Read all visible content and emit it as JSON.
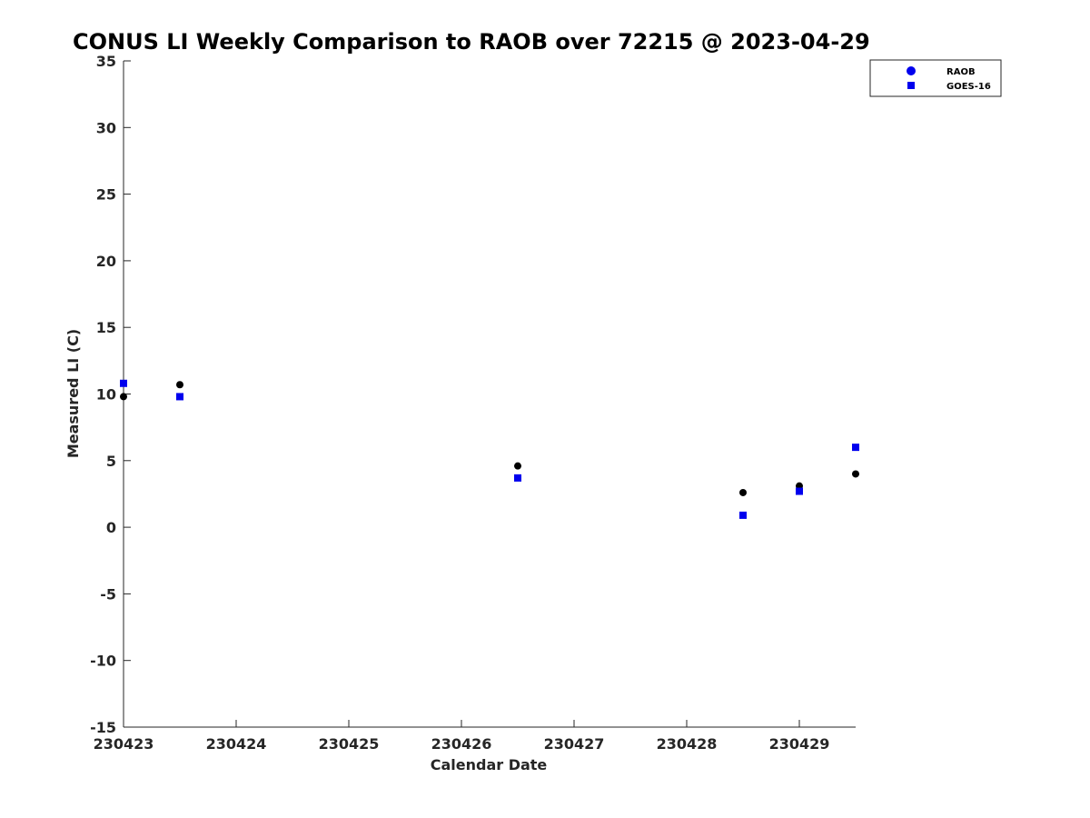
{
  "chart_data": {
    "type": "scatter",
    "title": "CONUS LI Weekly Comparison to RAOB over 72215 @ 2023-04-29",
    "xlabel": "Calendar Date",
    "ylabel": "Measured LI (C)",
    "x_tick_labels": [
      "230423",
      "230424",
      "230425",
      "230426",
      "230427",
      "230428",
      "230429"
    ],
    "x_ticks": [
      "2023-04-23",
      "2023-04-24",
      "2023-04-25",
      "2023-04-26",
      "2023-04-27",
      "2023-04-28",
      "2023-04-29"
    ],
    "xlim": [
      "2023-04-23T00:00",
      "2023-04-29T12:00"
    ],
    "ylim": [
      -15,
      35
    ],
    "y_ticks": [
      -15,
      -10,
      -5,
      0,
      5,
      10,
      15,
      20,
      25,
      30,
      35
    ],
    "grid": false,
    "legend_position": "top-right",
    "series": [
      {
        "name": "RAOB",
        "marker": "circle",
        "color": "#000000",
        "legend_color": "#0000ee",
        "points": [
          {
            "x": "2023-04-23T00:00",
            "y": 9.8
          },
          {
            "x": "2023-04-23T12:00",
            "y": 10.7
          },
          {
            "x": "2023-04-26T12:00",
            "y": 4.6
          },
          {
            "x": "2023-04-28T12:00",
            "y": 2.6
          },
          {
            "x": "2023-04-29T00:00",
            "y": 3.1
          },
          {
            "x": "2023-04-29T12:00",
            "y": 4.0
          }
        ]
      },
      {
        "name": "GOES-16",
        "marker": "square",
        "color": "#0000ee",
        "legend_color": "#0000ee",
        "points": [
          {
            "x": "2023-04-23T00:00",
            "y": 10.8
          },
          {
            "x": "2023-04-23T12:00",
            "y": 9.8
          },
          {
            "x": "2023-04-26T12:00",
            "y": 3.7
          },
          {
            "x": "2023-04-28T12:00",
            "y": 0.9
          },
          {
            "x": "2023-04-29T00:00",
            "y": 2.7
          },
          {
            "x": "2023-04-29T12:00",
            "y": 6.0
          }
        ]
      }
    ]
  }
}
